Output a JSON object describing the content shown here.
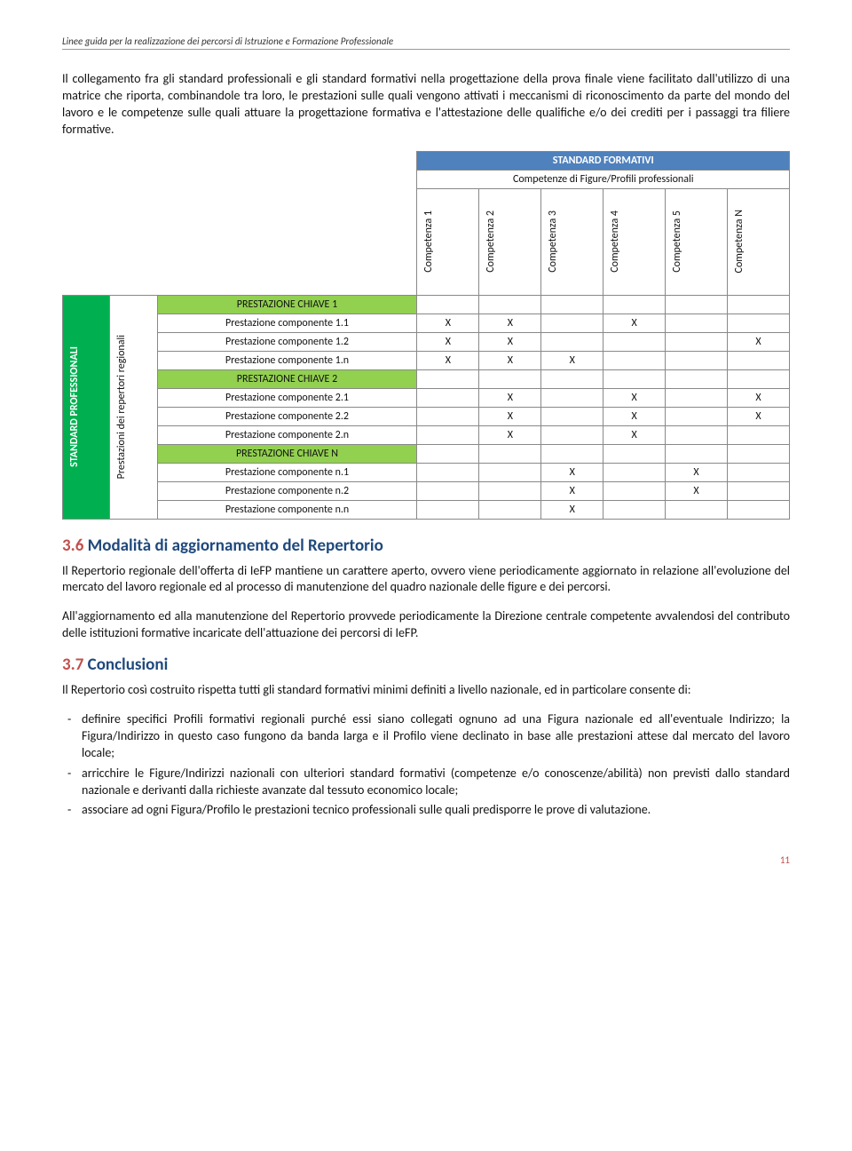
{
  "header": "Linee guida per la realizzazione dei percorsi di Istruzione e Formazione Professionale",
  "para1": "Il collegamento fra gli standard professionali e gli standard formativi nella progettazione della prova finale viene facilitato dall'utilizzo di una matrice che riporta, combinandole tra loro, le prestazioni sulle quali vengono attivati i meccanismi di riconoscimento da parte del mondo del lavoro e le competenze sulle quali attuare la progettazione formativa e l'attestazione delle qualifiche e/o dei crediti per i passaggi tra filiere formative.",
  "matrix": {
    "top_header": "STANDARD FORMATIVI",
    "sub_header": "Competenze di Figure/Profili professionali",
    "cols": [
      "Competenza 1",
      "Competenza 2",
      "Competenza 3",
      "Competenza 4",
      "Competenza 5",
      "Competenza N"
    ],
    "left_main": "STANDARD PROFESSIONALI",
    "left_sub": "Prestazioni dei repertori regionali",
    "groups": [
      {
        "label": "PRESTAZIONE CHIAVE 1",
        "rows": [
          {
            "label": "Prestazione componente 1.1",
            "x": [
              "X",
              "X",
              "",
              "X",
              "",
              ""
            ]
          },
          {
            "label": "Prestazione componente 1.2",
            "x": [
              "X",
              "X",
              "",
              "",
              "",
              "X"
            ]
          },
          {
            "label": "Prestazione componente 1.n",
            "x": [
              "X",
              "X",
              "X",
              "",
              "",
              ""
            ]
          }
        ]
      },
      {
        "label": "PRESTAZIONE CHIAVE 2",
        "rows": [
          {
            "label": "Prestazione componente 2.1",
            "x": [
              "",
              "X",
              "",
              "X",
              "",
              "X"
            ]
          },
          {
            "label": "Prestazione componente 2.2",
            "x": [
              "",
              "X",
              "",
              "X",
              "",
              "X"
            ]
          },
          {
            "label": "Prestazione componente 2.n",
            "x": [
              "",
              "X",
              "",
              "X",
              "",
              ""
            ]
          }
        ]
      },
      {
        "label": "PRESTAZIONE CHIAVE N",
        "rows": [
          {
            "label": "Prestazione componente n.1",
            "x": [
              "",
              "",
              "X",
              "",
              "X",
              ""
            ]
          },
          {
            "label": "Prestazione componente n.2",
            "x": [
              "",
              "",
              "X",
              "",
              "X",
              ""
            ]
          },
          {
            "label": "Prestazione componente n.n",
            "x": [
              "",
              "",
              "X",
              "",
              "",
              ""
            ]
          }
        ]
      }
    ]
  },
  "sec36_num": "3.6",
  "sec36_title": "Modalità di aggiornamento del Repertorio",
  "sec36_p1": "Il Repertorio regionale dell'offerta di IeFP mantiene un carattere aperto, ovvero viene periodicamente aggiornato in relazione all'evoluzione del mercato del lavoro regionale ed al processo di manutenzione del quadro nazionale delle figure e dei percorsi.",
  "sec36_p2": "All'aggiornamento ed alla manutenzione del Repertorio provvede periodicamente la Direzione centrale competente avvalendosi del contributo delle istituzioni formative incaricate dell'attuazione dei percorsi di IeFP.",
  "sec37_num": "3.7",
  "sec37_title": "Conclusioni",
  "sec37_p1": "Il Repertorio così costruito rispetta tutti gli standard formativi minimi definiti a livello nazionale, ed in particolare consente di:",
  "sec37_items": [
    "definire specifici Profili formativi regionali purché essi siano collegati ognuno ad una Figura nazionale ed all'eventuale Indirizzo; la Figura/Indirizzo in questo caso fungono da banda larga e il Profilo viene declinato in base alle prestazioni attese dal mercato del lavoro locale;",
    "arricchire le Figure/Indirizzi nazionali con ulteriori standard formativi (competenze e/o conoscenze/abilità) non previsti dallo standard nazionale e derivanti dalla richieste avanzate dal tessuto economico locale;",
    "associare ad ogni Figura/Profilo le prestazioni tecnico professionali sulle quali predisporre le prove di valutazione."
  ],
  "pagenum": "11",
  "colors": {
    "blue_header": "#4f81bd",
    "green_light": "#92d050",
    "green_dark": "#00b050",
    "heading_num": "#c0504d",
    "heading_txt": "#1f497d"
  }
}
